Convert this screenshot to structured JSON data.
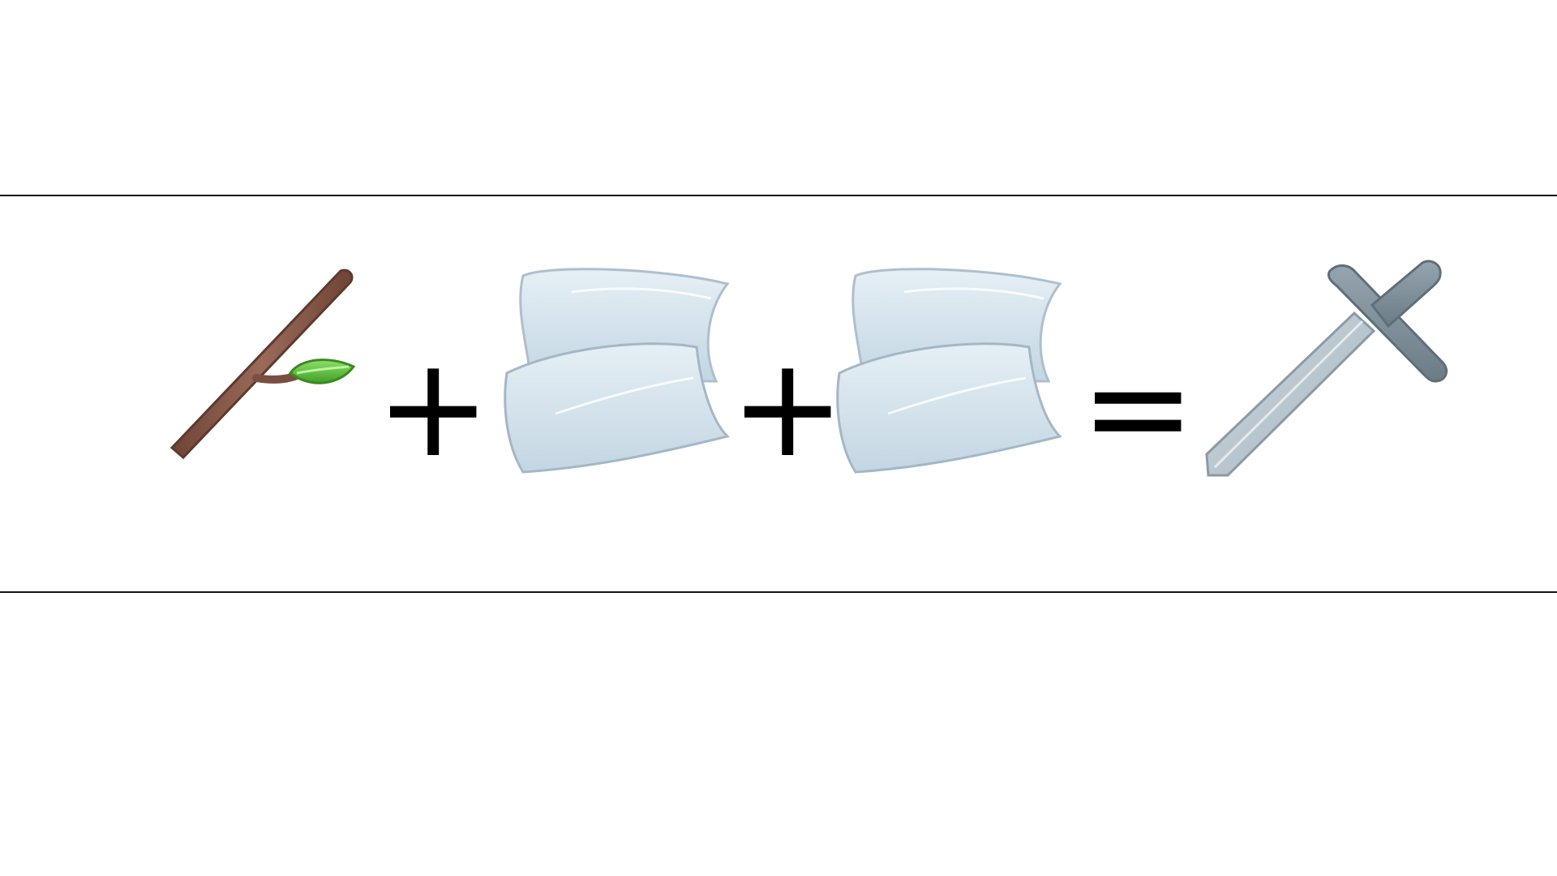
{
  "recipe": {
    "ingredients": [
      {
        "icon": "stick-icon"
      },
      {
        "icon": "fabric-icon"
      },
      {
        "icon": "fabric-icon"
      }
    ],
    "operators": {
      "plus": "+",
      "equals": "="
    },
    "result": {
      "icon": "sword-icon"
    }
  },
  "colors": {
    "background": "#ffffff",
    "divider": "#111111",
    "stick": "#8a5a4a",
    "leaf": "#5cbf3a",
    "fabric": "#cfdfe9",
    "sword_blade": "#b7c4cc",
    "sword_guard": "#7f8e98"
  }
}
